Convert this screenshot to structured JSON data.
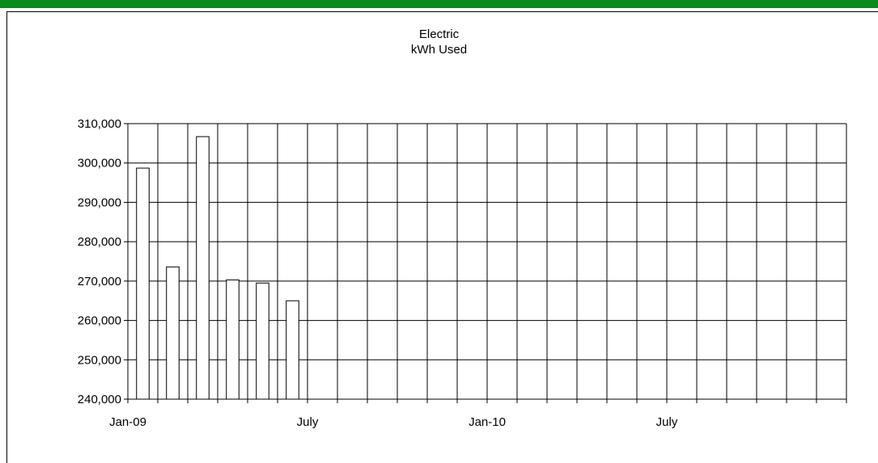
{
  "colors": {
    "top_bar": "#0a8a1e",
    "grid": "#000000",
    "bar_fill": "#ffffff",
    "bar_stroke": "#000000"
  },
  "chart_data": {
    "type": "bar",
    "title": "Electric",
    "subtitle": "kWh Used",
    "xlabel": "",
    "ylabel": "",
    "x_range": [
      "2009-01",
      "2010-12"
    ],
    "x_tick_labels": [
      {
        "label": "Jan-09",
        "month": "2009-01"
      },
      {
        "label": "July",
        "month": "2009-07"
      },
      {
        "label": "Jan-10",
        "month": "2010-01"
      },
      {
        "label": "July",
        "month": "2010-07"
      }
    ],
    "ylim": [
      240000,
      310000
    ],
    "y_ticks": [
      240000,
      250000,
      260000,
      270000,
      280000,
      290000,
      300000,
      310000
    ],
    "y_tick_labels": [
      "240,000",
      "250,000",
      "260,000",
      "270,000",
      "280,000",
      "290,000",
      "300,000",
      "310,000"
    ],
    "grid": true,
    "categories": [
      "2009-01",
      "2009-02",
      "2009-03",
      "2009-04",
      "2009-05",
      "2009-06"
    ],
    "values": [
      298700,
      273600,
      306700,
      270300,
      269500,
      265000
    ]
  }
}
